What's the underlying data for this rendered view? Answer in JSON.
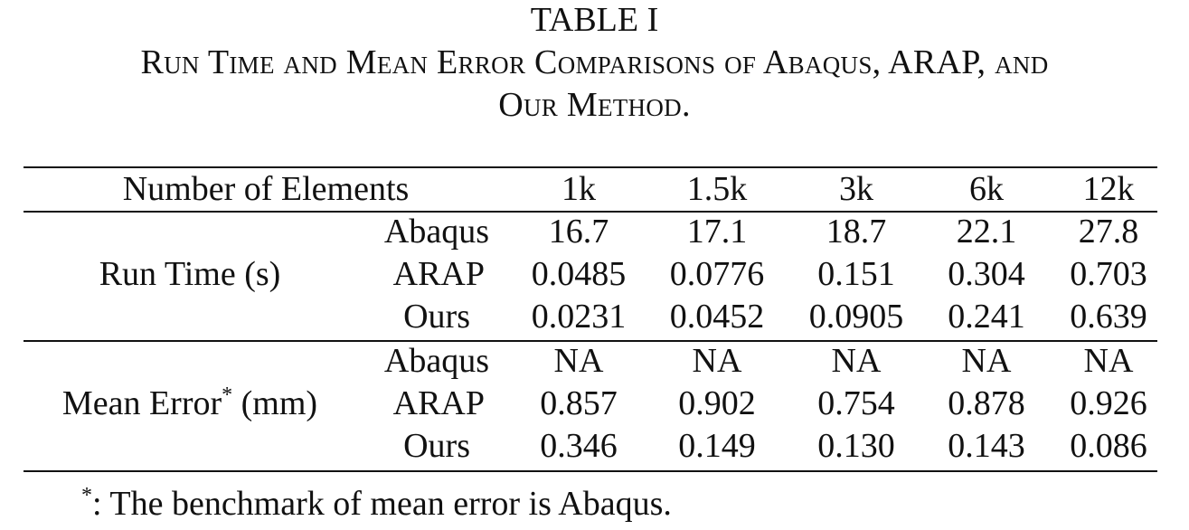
{
  "table": {
    "label": "TABLE I",
    "caption_line1": "Run Time and Mean Error Comparisons of Abaqus, ARAP, and",
    "caption_line2": "Our Method.",
    "header": {
      "first": "Number of Elements",
      "columns": [
        "1k",
        "1.5k",
        "3k",
        "6k",
        "12k"
      ]
    },
    "groups": [
      {
        "label": "Run Time (s)",
        "rows": [
          {
            "method": "Abaqus",
            "values": [
              "16.7",
              "17.1",
              "18.7",
              "22.1",
              "27.8"
            ]
          },
          {
            "method": "ARAP",
            "values": [
              "0.0485",
              "0.0776",
              "0.151",
              "0.304",
              "0.703"
            ]
          },
          {
            "method": "Ours",
            "values": [
              "0.0231",
              "0.0452",
              "0.0905",
              "0.241",
              "0.639"
            ]
          }
        ]
      },
      {
        "label": "Mean Error",
        "label_mark": "*",
        "label_unit": " (mm)",
        "rows": [
          {
            "method": "Abaqus",
            "values": [
              "NA",
              "NA",
              "NA",
              "NA",
              "NA"
            ]
          },
          {
            "method": "ARAP",
            "values": [
              "0.857",
              "0.902",
              "0.754",
              "0.878",
              "0.926"
            ]
          },
          {
            "method": "Ours",
            "values": [
              "0.346",
              "0.149",
              "0.130",
              "0.143",
              "0.086"
            ]
          }
        ]
      }
    ],
    "footnote_mark": "*",
    "footnote_text": ": The benchmark of mean error is Abaqus."
  }
}
